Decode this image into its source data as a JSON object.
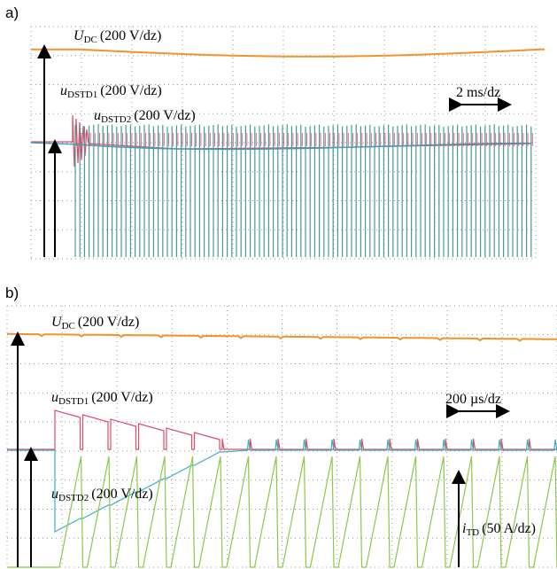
{
  "panels": [
    {
      "label": "a)",
      "timebase": "2 ms/dz",
      "traces": [
        {
          "symbol": "U",
          "subscript": "DC",
          "scale": "(200 V/dz)"
        },
        {
          "symbol": "u",
          "subscript": "DSTD1",
          "scale": "(200 V/dz)"
        },
        {
          "symbol": "u",
          "subscript": "DSTD2",
          "scale": "(200 V/dz)"
        }
      ]
    },
    {
      "label": "b)",
      "timebase": "200 µs/dz",
      "traces": [
        {
          "symbol": "U",
          "subscript": "DC",
          "scale": "(200 V/dz)"
        },
        {
          "symbol": "u",
          "subscript": "DSTD1",
          "scale": "(200 V/dz)"
        },
        {
          "symbol": "u",
          "subscript": "DSTD2",
          "scale": "(200 V/dz)"
        },
        {
          "symbol": "i",
          "subscript": "TD",
          "scale": "(50 A/dz)"
        }
      ]
    }
  ]
}
